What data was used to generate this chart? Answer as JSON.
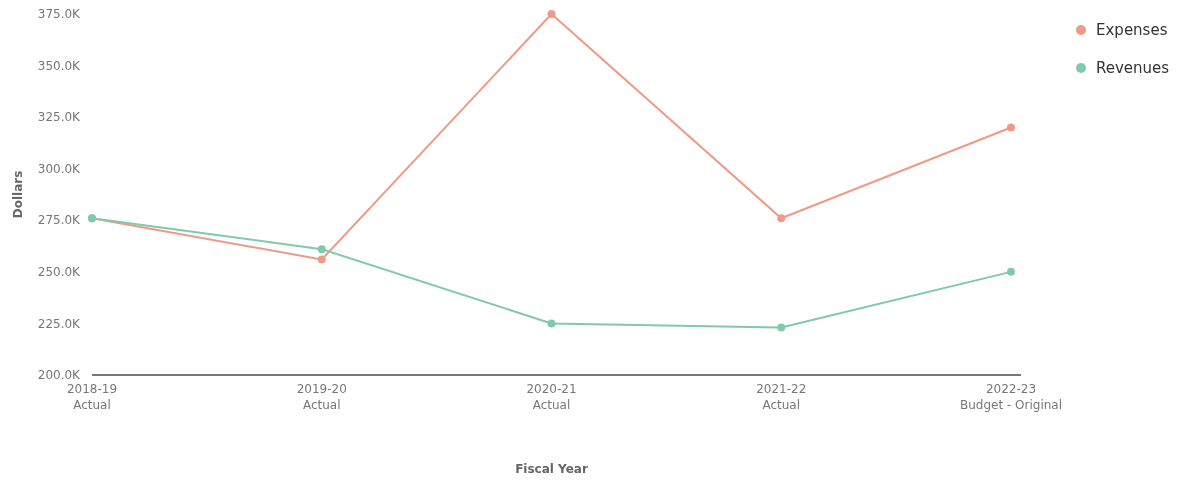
{
  "chart_data": {
    "type": "line",
    "xlabel": "Fiscal Year",
    "ylabel": "Dollars",
    "categories": [
      "2018-19 Actual",
      "2019-20 Actual",
      "2020-21 Actual",
      "2021-22 Actual",
      "2022-23 Budget - Original"
    ],
    "series": [
      {
        "name": "Expenses",
        "color": "#ee9a86",
        "values": [
          276000,
          256000,
          375000,
          276000,
          320000
        ]
      },
      {
        "name": "Revenues",
        "color": "#80c9ad",
        "values": [
          276000,
          261000,
          225000,
          223000,
          250000
        ]
      }
    ],
    "ylim": [
      200000,
      375000
    ],
    "yticks": [
      {
        "value": 200000,
        "label": "200.0K"
      },
      {
        "value": 225000,
        "label": "225.0K"
      },
      {
        "value": 250000,
        "label": "250.0K"
      },
      {
        "value": 275000,
        "label": "275.0K"
      },
      {
        "value": 300000,
        "label": "300.0K"
      },
      {
        "value": 325000,
        "label": "325.0K"
      },
      {
        "value": 350000,
        "label": "350.0K"
      },
      {
        "value": 375000,
        "label": "375.0K"
      }
    ],
    "grid": false,
    "legend": "top right",
    "marker": "circle",
    "line_style": "solid"
  }
}
